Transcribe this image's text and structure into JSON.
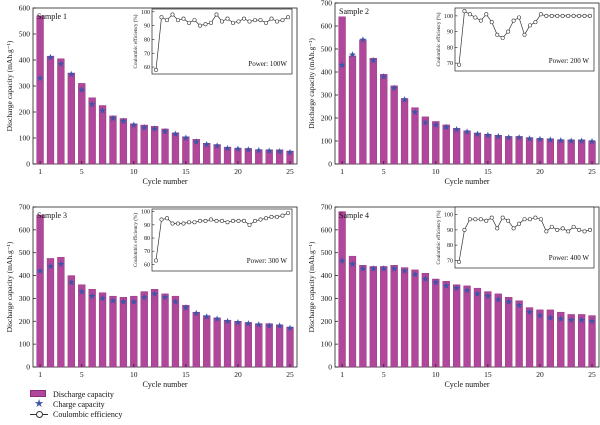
{
  "colors": {
    "discharge": "#b0479a",
    "discharge_edge": "#8c2f7a",
    "charge": "#3b56a8",
    "ce": "#333333"
  },
  "legend": {
    "discharge_label": "Discharge capacity",
    "charge_label": "Charge capacity",
    "ce_label": "Coulombic efficiency"
  },
  "chart_data": [
    {
      "type": "bar",
      "title": "Sample 1",
      "xlabel": "Cycle number",
      "ylabel": "Discharge capacity (mAh.g⁻¹)",
      "xticks": [
        1,
        5,
        10,
        15,
        20,
        25
      ],
      "ylim": [
        0,
        600
      ],
      "yticks": [
        0,
        100,
        200,
        300,
        400,
        500,
        600
      ],
      "categories": [
        1,
        2,
        3,
        4,
        5,
        6,
        7,
        8,
        9,
        10,
        11,
        12,
        13,
        14,
        15,
        16,
        17,
        18,
        19,
        20,
        21,
        22,
        23,
        24,
        25
      ],
      "series": [
        {
          "name": "Discharge capacity",
          "values": [
            570,
            415,
            405,
            350,
            310,
            255,
            225,
            185,
            175,
            155,
            150,
            145,
            135,
            120,
            105,
            95,
            80,
            75,
            65,
            60,
            60,
            55,
            55,
            55,
            50
          ]
        },
        {
          "name": "Charge capacity",
          "values": [
            330,
            410,
            385,
            345,
            285,
            230,
            205,
            175,
            165,
            150,
            140,
            135,
            125,
            115,
            100,
            85,
            75,
            70,
            60,
            58,
            55,
            52,
            50,
            48,
            45
          ]
        }
      ],
      "inset": {
        "ylabel": "Coulombic efficiency (%)",
        "ylim": [
          55,
          102
        ],
        "yticks": [
          60,
          70,
          80,
          90,
          100
        ],
        "power": "Power: 100W",
        "values": [
          58,
          96,
          94,
          98,
          94,
          95,
          92,
          94,
          90,
          91,
          92,
          98,
          93,
          95,
          92,
          93,
          95,
          93,
          94,
          94,
          92,
          95,
          93,
          94,
          96
        ]
      }
    },
    {
      "type": "bar",
      "title": "Sample 2",
      "xlabel": "Cycle number",
      "ylabel": "Discharge capacity (mAh.g⁻¹)",
      "xticks": [
        1,
        5,
        10,
        15,
        20,
        25
      ],
      "ylim": [
        0,
        700
      ],
      "yticks": [
        0,
        100,
        200,
        300,
        400,
        500,
        600,
        700
      ],
      "categories": [
        1,
        2,
        3,
        4,
        5,
        6,
        7,
        8,
        9,
        10,
        11,
        12,
        13,
        14,
        15,
        16,
        17,
        18,
        19,
        20,
        21,
        22,
        23,
        24,
        25
      ],
      "series": [
        {
          "name": "Discharge capacity",
          "values": [
            640,
            470,
            540,
            460,
            390,
            340,
            285,
            245,
            205,
            185,
            170,
            155,
            145,
            135,
            130,
            125,
            120,
            120,
            115,
            110,
            110,
            105,
            105,
            105,
            100
          ]
        },
        {
          "name": "Charge capacity",
          "values": [
            430,
            475,
            540,
            450,
            380,
            330,
            280,
            225,
            180,
            170,
            160,
            150,
            140,
            130,
            125,
            120,
            115,
            115,
            110,
            108,
            105,
            102,
            100,
            100,
            98
          ]
        }
      ],
      "inset": {
        "ylabel": "Coulombic efficiency (%)",
        "ylim": [
          65,
          105
        ],
        "yticks": [
          70,
          80,
          90,
          100
        ],
        "power": "Power: 200 W",
        "values": [
          69,
          103,
          101,
          99,
          97,
          101,
          96,
          88,
          86,
          90,
          97,
          99,
          88,
          94,
          96,
          101,
          100,
          100,
          100,
          100,
          100,
          100,
          100,
          100,
          100
        ]
      }
    },
    {
      "type": "bar",
      "title": "Sample 3",
      "xlabel": "Cycle number",
      "ylabel": "Discharge capacity (mAh.g⁻¹)",
      "xticks": [
        1,
        5,
        10,
        15,
        20,
        25
      ],
      "ylim": [
        0,
        700
      ],
      "yticks": [
        0,
        100,
        200,
        300,
        400,
        500,
        600,
        700
      ],
      "categories": [
        1,
        2,
        3,
        4,
        5,
        6,
        7,
        8,
        9,
        10,
        11,
        12,
        13,
        14,
        15,
        16,
        17,
        18,
        19,
        20,
        21,
        22,
        23,
        24,
        25
      ],
      "series": [
        {
          "name": "Discharge capacity",
          "values": [
            665,
            475,
            480,
            400,
            360,
            340,
            325,
            310,
            305,
            310,
            330,
            340,
            320,
            310,
            270,
            240,
            225,
            215,
            205,
            200,
            195,
            190,
            190,
            185,
            175
          ]
        },
        {
          "name": "Charge capacity",
          "values": [
            420,
            440,
            450,
            370,
            330,
            310,
            300,
            290,
            285,
            285,
            305,
            320,
            305,
            285,
            260,
            235,
            220,
            210,
            200,
            195,
            190,
            185,
            180,
            180,
            170
          ]
        }
      ],
      "inset": {
        "ylabel": "Coulombic efficiency (%)",
        "ylim": [
          55,
          102
        ],
        "yticks": [
          60,
          70,
          80,
          90,
          100
        ],
        "power": "Power: 300 W",
        "values": [
          63,
          94,
          95,
          91,
          91,
          91,
          92,
          92,
          93,
          93,
          94,
          93,
          93,
          92,
          93,
          93,
          93,
          90,
          93,
          94,
          95,
          96,
          96,
          97,
          99
        ]
      }
    },
    {
      "type": "bar",
      "title": "Sample 4",
      "xlabel": "Cycle number",
      "ylabel": "Discharge capacity (mAh.g⁻¹)",
      "xticks": [
        1,
        5,
        10,
        15,
        20,
        25
      ],
      "ylim": [
        0,
        700
      ],
      "yticks": [
        0,
        100,
        200,
        300,
        400,
        500,
        600,
        700
      ],
      "categories": [
        1,
        2,
        3,
        4,
        5,
        6,
        7,
        8,
        9,
        10,
        11,
        12,
        13,
        14,
        15,
        16,
        17,
        18,
        19,
        20,
        21,
        22,
        23,
        24,
        25
      ],
      "series": [
        {
          "name": "Discharge capacity",
          "values": [
            680,
            485,
            445,
            440,
            440,
            445,
            435,
            425,
            410,
            385,
            375,
            360,
            355,
            345,
            330,
            320,
            305,
            290,
            260,
            250,
            250,
            240,
            230,
            230,
            225
          ]
        },
        {
          "name": "Charge capacity",
          "values": [
            465,
            450,
            430,
            430,
            430,
            430,
            420,
            405,
            385,
            370,
            355,
            345,
            335,
            320,
            310,
            295,
            285,
            270,
            240,
            225,
            215,
            210,
            205,
            205,
            200
          ]
        }
      ],
      "inset": {
        "ylabel": "Coulombic efficiency (%)",
        "ylim": [
          65,
          105
        ],
        "yticks": [
          70,
          80,
          90,
          100
        ],
        "power": "Power: 400 W",
        "values": [
          69,
          90,
          97,
          97,
          97,
          96,
          98,
          91,
          98,
          96,
          91,
          94,
          97,
          97,
          98,
          97,
          89,
          92,
          90,
          91,
          89,
          92,
          90,
          89,
          90
        ]
      }
    }
  ]
}
